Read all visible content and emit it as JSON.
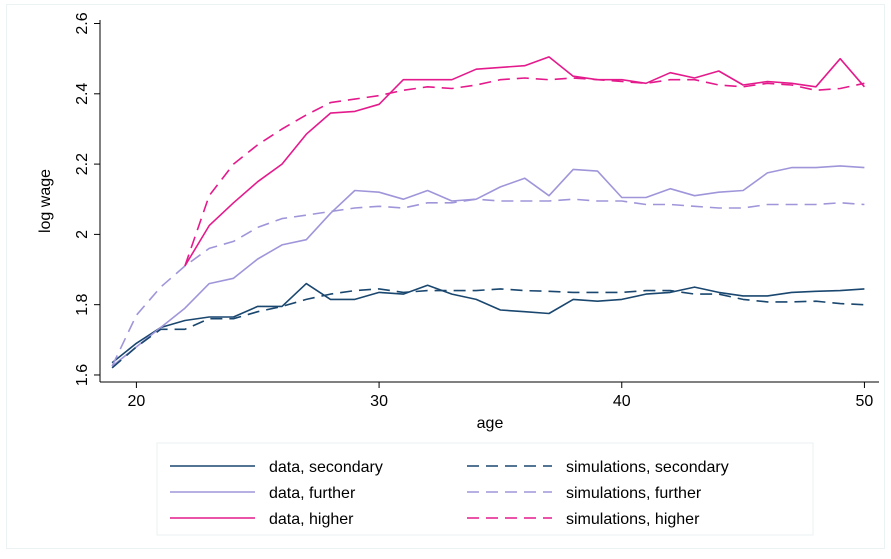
{
  "chart_data": {
    "type": "line",
    "title": "",
    "xlabel": "age",
    "ylabel": "log wage",
    "xlim": [
      18.5,
      50.6
    ],
    "ylim": [
      1.58,
      2.61
    ],
    "xticks": [
      20,
      30,
      40,
      50
    ],
    "yticks": [
      1.6,
      1.8,
      2,
      2.2,
      2.4,
      2.6
    ],
    "xtick_labels": [
      "20",
      "30",
      "40",
      "50"
    ],
    "ytick_labels": [
      "1.6",
      "1.8",
      "2",
      "2.2",
      "2.4",
      "2.6"
    ],
    "grid": false,
    "legend_position": "bottom",
    "series": [
      {
        "name": "data, secondary",
        "color": "#1a476f",
        "dash": "solid",
        "x": [
          19,
          20,
          21,
          22,
          23,
          24,
          25,
          26,
          27,
          28,
          29,
          30,
          31,
          32,
          33,
          34,
          35,
          36,
          37,
          38,
          39,
          40,
          41,
          42,
          43,
          44,
          45,
          46,
          47,
          48,
          49,
          50
        ],
        "y": [
          1.635,
          1.69,
          1.735,
          1.755,
          1.765,
          1.765,
          1.795,
          1.795,
          1.86,
          1.815,
          1.815,
          1.835,
          1.83,
          1.855,
          1.83,
          1.815,
          1.785,
          1.78,
          1.775,
          1.815,
          1.81,
          1.815,
          1.83,
          1.835,
          1.85,
          1.835,
          1.825,
          1.825,
          1.835,
          1.838,
          1.84,
          1.845
        ]
      },
      {
        "name": "data, further",
        "color": "#9f96da",
        "dash": "solid",
        "x": [
          19,
          20,
          21,
          22,
          23,
          24,
          25,
          26,
          27,
          28,
          29,
          30,
          31,
          32,
          33,
          34,
          35,
          36,
          37,
          38,
          39,
          40,
          41,
          42,
          43,
          44,
          45,
          46,
          47,
          48,
          49,
          50
        ],
        "y": [
          1.625,
          1.68,
          1.735,
          1.79,
          1.86,
          1.875,
          1.93,
          1.97,
          1.985,
          2.06,
          2.125,
          2.12,
          2.1,
          2.125,
          2.095,
          2.1,
          2.135,
          2.16,
          2.11,
          2.185,
          2.18,
          2.105,
          2.105,
          2.13,
          2.11,
          2.12,
          2.125,
          2.175,
          2.19,
          2.19,
          2.195,
          2.19
        ]
      },
      {
        "name": "data, higher",
        "color": "#e41a8c",
        "dash": "solid",
        "x": [
          22,
          23,
          24,
          25,
          26,
          27,
          28,
          29,
          30,
          31,
          32,
          33,
          34,
          35,
          36,
          37,
          38,
          39,
          40,
          41,
          42,
          43,
          44,
          45,
          46,
          47,
          48,
          49,
          50
        ],
        "y": [
          1.91,
          2.025,
          2.09,
          2.15,
          2.2,
          2.285,
          2.345,
          2.35,
          2.37,
          2.44,
          2.44,
          2.44,
          2.47,
          2.475,
          2.48,
          2.505,
          2.45,
          2.44,
          2.44,
          2.43,
          2.46,
          2.445,
          2.465,
          2.425,
          2.435,
          2.43,
          2.42,
          2.5,
          2.42
        ]
      },
      {
        "name": "simulations, secondary",
        "color": "#1a476f",
        "dash": "dashed",
        "x": [
          19,
          20,
          21,
          22,
          23,
          24,
          25,
          26,
          27,
          28,
          29,
          30,
          31,
          32,
          33,
          34,
          35,
          36,
          37,
          38,
          39,
          40,
          41,
          42,
          43,
          44,
          45,
          46,
          47,
          48,
          49,
          50
        ],
        "y": [
          1.62,
          1.68,
          1.73,
          1.73,
          1.76,
          1.76,
          1.78,
          1.795,
          1.815,
          1.83,
          1.84,
          1.845,
          1.835,
          1.84,
          1.84,
          1.84,
          1.845,
          1.84,
          1.838,
          1.835,
          1.835,
          1.835,
          1.84,
          1.84,
          1.83,
          1.83,
          1.815,
          1.808,
          1.808,
          1.81,
          1.803,
          1.8
        ]
      },
      {
        "name": "simulations, further",
        "color": "#9f96da",
        "dash": "dashed",
        "x": [
          19,
          20,
          21,
          22,
          23,
          24,
          25,
          26,
          27,
          28,
          29,
          30,
          31,
          32,
          33,
          34,
          35,
          36,
          37,
          38,
          39,
          40,
          41,
          42,
          43,
          44,
          45,
          46,
          47,
          48,
          49,
          50
        ],
        "y": [
          1.625,
          1.77,
          1.85,
          1.91,
          1.96,
          1.98,
          2.02,
          2.045,
          2.055,
          2.065,
          2.075,
          2.08,
          2.075,
          2.09,
          2.09,
          2.1,
          2.095,
          2.095,
          2.095,
          2.1,
          2.095,
          2.095,
          2.085,
          2.085,
          2.08,
          2.075,
          2.075,
          2.085,
          2.085,
          2.085,
          2.09,
          2.085
        ]
      },
      {
        "name": "simulations, higher",
        "color": "#e41a8c",
        "dash": "dashed",
        "x": [
          22,
          23,
          24,
          25,
          26,
          27,
          28,
          29,
          30,
          31,
          32,
          33,
          34,
          35,
          36,
          37,
          38,
          39,
          40,
          41,
          42,
          43,
          44,
          45,
          46,
          47,
          48,
          49,
          50
        ],
        "y": [
          1.91,
          2.11,
          2.2,
          2.255,
          2.3,
          2.34,
          2.375,
          2.385,
          2.395,
          2.41,
          2.42,
          2.415,
          2.425,
          2.44,
          2.445,
          2.44,
          2.445,
          2.44,
          2.435,
          2.43,
          2.44,
          2.44,
          2.425,
          2.42,
          2.43,
          2.425,
          2.41,
          2.415,
          2.43
        ]
      }
    ]
  }
}
